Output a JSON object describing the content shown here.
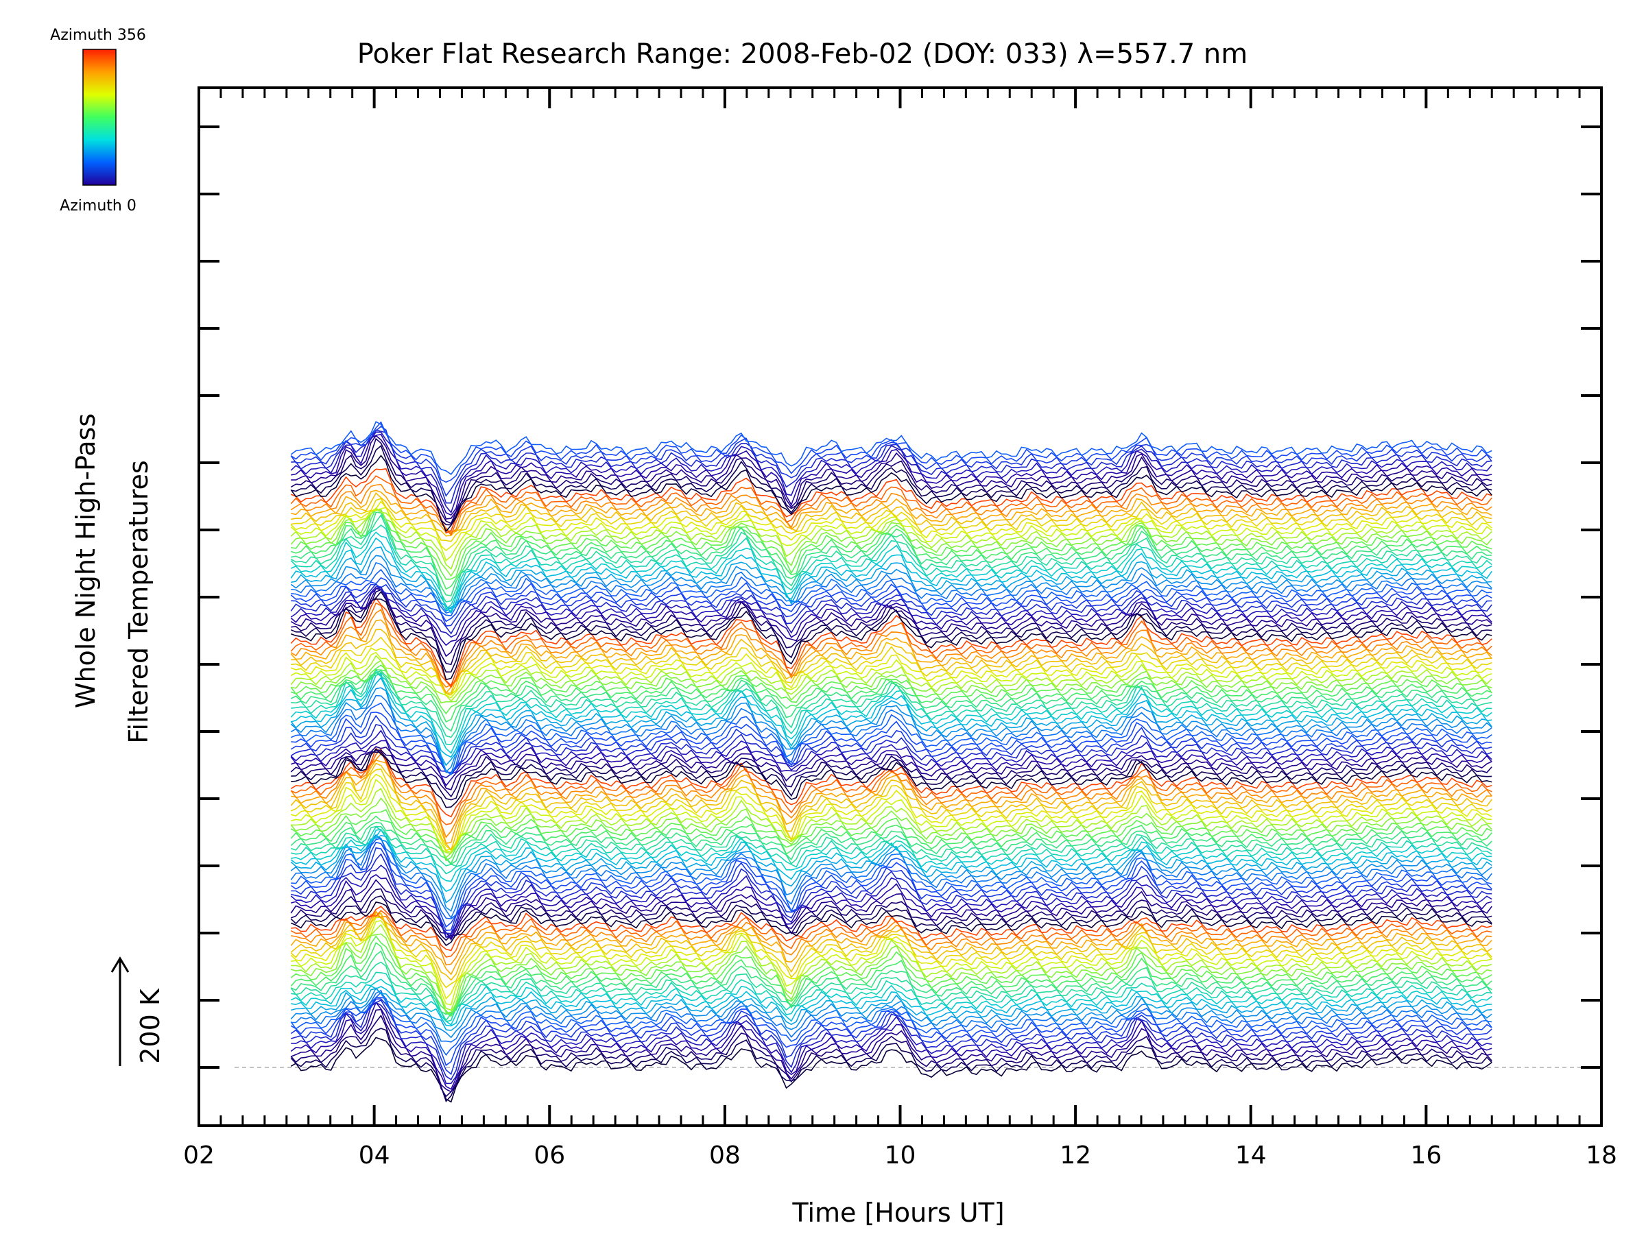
{
  "chart_data": {
    "type": "line",
    "title": "Poker Flat Research Range: 2008-Feb-02 (DOY: 033) λ=557.7 nm",
    "xlabel": "Time [Hours UT]",
    "ylabel_line1": "Whole Night High-Pass",
    "ylabel_line2": "Filtered Temperatures",
    "scale_bar_label": "200 K",
    "scale_bar_K": 200,
    "xlim": [
      2,
      18
    ],
    "x_ticks": [
      "02",
      "04",
      "06",
      "08",
      "10",
      "12",
      "14",
      "16",
      "18"
    ],
    "x_tick_values": [
      2,
      4,
      6,
      8,
      10,
      12,
      14,
      16,
      18
    ],
    "y_axis_major_ticks": 15,
    "colorbar": {
      "top_label": "Azimuth 356",
      "bottom_label": "Azimuth 0",
      "colors": [
        "#ff2000",
        "#ffa000",
        "#e0ff00",
        "#40ff60",
        "#00e0e0",
        "#0060ff",
        "#20009a"
      ]
    },
    "series_info": {
      "count": 130,
      "x_start": 3.05,
      "x_end": 16.75,
      "offset_K_per_trace": 20,
      "color_cycle_traces": 60,
      "baseline_K": 0
    },
    "feature_times": [
      3.7,
      4.05,
      4.85,
      5.3,
      5.75,
      6.5,
      7.4,
      8.2,
      8.75,
      9.2,
      9.95,
      11.5,
      12.75,
      13.3,
      15.8
    ],
    "colors": {
      "axis": "#000000",
      "baseline": "#b0b0b0",
      "background": "#ffffff"
    }
  }
}
